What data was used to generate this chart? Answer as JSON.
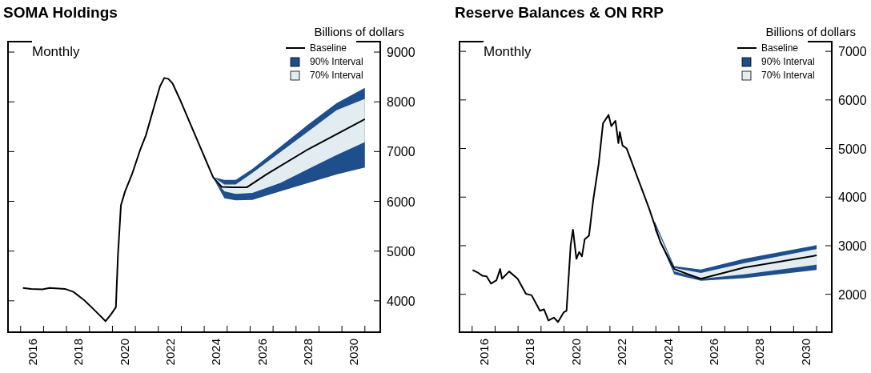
{
  "chart_data": [
    {
      "type": "line",
      "title": "SOMA Holdings",
      "ylabel": "Billions of dollars",
      "annotations": [
        "Monthly"
      ],
      "legend": "top right",
      "xlim": [
        2015.45,
        2031.67
      ],
      "ylim": [
        3370,
        9210
      ],
      "yticks": [
        4000,
        5000,
        6000,
        7000,
        8000,
        9000
      ],
      "xticks": [
        {
          "value": 2016,
          "label": null
        },
        {
          "value": 2016.5,
          "label": "2016"
        },
        {
          "value": 2017,
          "label": null
        },
        {
          "value": 2018,
          "label": null
        },
        {
          "value": 2018.5,
          "label": "2018"
        },
        {
          "value": 2019,
          "label": null
        },
        {
          "value": 2020,
          "label": null
        },
        {
          "value": 2020.5,
          "label": "2020"
        },
        {
          "value": 2021,
          "label": null
        },
        {
          "value": 2022,
          "label": null
        },
        {
          "value": 2022.5,
          "label": "2022"
        },
        {
          "value": 2023,
          "label": null
        },
        {
          "value": 2024,
          "label": null
        },
        {
          "value": 2024.5,
          "label": "2024"
        },
        {
          "value": 2025,
          "label": null
        },
        {
          "value": 2026,
          "label": null
        },
        {
          "value": 2026.5,
          "label": "2026"
        },
        {
          "value": 2027,
          "label": null
        },
        {
          "value": 2028,
          "label": null
        },
        {
          "value": 2028.5,
          "label": "2028"
        },
        {
          "value": 2029,
          "label": null
        },
        {
          "value": 2030,
          "label": null
        },
        {
          "value": 2030.5,
          "label": "2030"
        },
        {
          "value": 2031,
          "label": null
        }
      ],
      "series": [
        {
          "name": "90% Interval",
          "color": "#1f4e8c",
          "x": [
            2024.45,
            2024.88,
            2025.37,
            2026.1,
            2027.32,
            2028.54,
            2029.76,
            2031.0
          ],
          "values": [
            null,
            null,
            null,
            null,
            null,
            null,
            null,
            null
          ],
          "lower": [
            6420,
            6060,
            6020,
            6030,
            6200,
            6370,
            6540,
            6680
          ],
          "upper": [
            6480,
            6430,
            6430,
            6650,
            7100,
            7550,
            7970,
            8280
          ]
        },
        {
          "name": "70% Interval",
          "color": "#e3edf1",
          "x": [
            2024.45,
            2024.88,
            2025.37,
            2026.1,
            2027.32,
            2028.54,
            2029.76,
            2031.0
          ],
          "values": [
            null,
            null,
            null,
            null,
            null,
            null,
            null,
            null
          ],
          "lower": [
            6430,
            6200,
            6150,
            6170,
            6370,
            6650,
            6930,
            7190
          ],
          "upper": [
            6470,
            6340,
            6340,
            6570,
            6990,
            7410,
            7830,
            8060
          ]
        },
        {
          "name": "Baseline",
          "color": "#000000",
          "x": [
            2016.1,
            2016.46,
            2016.95,
            2017.26,
            2017.93,
            2018.3,
            2018.78,
            2019.27,
            2019.7,
            2019.94,
            2020.15,
            2020.24,
            2020.37,
            2020.55,
            2020.85,
            2021.22,
            2021.46,
            2021.77,
            2022.07,
            2022.26,
            2022.44,
            2022.62,
            2022.93,
            2023.66,
            2024.39,
            2024.76,
            2025.24,
            2025.85,
            2026.71,
            2028.54,
            2031.0
          ],
          "values": [
            4260,
            4240,
            4230,
            4260,
            4240,
            4180,
            4010,
            3790,
            3590,
            3730,
            3870,
            4910,
            5920,
            6200,
            6540,
            7050,
            7330,
            7830,
            8310,
            8480,
            8460,
            8370,
            8060,
            7270,
            6480,
            6290,
            6280,
            6280,
            6540,
            7050,
            7650
          ]
        }
      ]
    },
    {
      "type": "line",
      "title": "Reserve Balances & ON RRP",
      "ylabel": "Billions of dollars",
      "annotations": [
        "Monthly"
      ],
      "legend": "top right",
      "xlim": [
        2015.45,
        2031.66
      ],
      "ylim": [
        1220,
        7200
      ],
      "yticks": [
        2000,
        3000,
        4000,
        5000,
        6000,
        7000
      ],
      "xticks": [
        {
          "value": 2016,
          "label": null
        },
        {
          "value": 2016.5,
          "label": "2016"
        },
        {
          "value": 2017,
          "label": null
        },
        {
          "value": 2018,
          "label": null
        },
        {
          "value": 2018.5,
          "label": "2018"
        },
        {
          "value": 2019,
          "label": null
        },
        {
          "value": 2020,
          "label": null
        },
        {
          "value": 2020.5,
          "label": "2020"
        },
        {
          "value": 2021,
          "label": null
        },
        {
          "value": 2022,
          "label": null
        },
        {
          "value": 2022.5,
          "label": "2022"
        },
        {
          "value": 2023,
          "label": null
        },
        {
          "value": 2024,
          "label": null
        },
        {
          "value": 2024.5,
          "label": "2024"
        },
        {
          "value": 2025,
          "label": null
        },
        {
          "value": 2026,
          "label": null
        },
        {
          "value": 2026.5,
          "label": "2026"
        },
        {
          "value": 2027,
          "label": null
        },
        {
          "value": 2028,
          "label": null
        },
        {
          "value": 2028.5,
          "label": "2028"
        },
        {
          "value": 2029,
          "label": null
        },
        {
          "value": 2030,
          "label": null
        },
        {
          "value": 2030.5,
          "label": "2030"
        },
        {
          "value": 2031,
          "label": null
        }
      ],
      "series": [
        {
          "name": "90% Interval",
          "color": "#1f4e8c",
          "x": [
            2023.95,
            2024.8,
            2025.96,
            2027.85,
            2031.0
          ],
          "values": [
            null,
            null,
            null,
            null,
            null
          ],
          "lower": [
            3330,
            2410,
            2280,
            2330,
            2500
          ],
          "upper": [
            3500,
            2580,
            2510,
            2730,
            3010
          ]
        },
        {
          "name": "70% Interval",
          "color": "#e3edf1",
          "x": [
            2023.95,
            2024.8,
            2025.96,
            2027.85,
            2031.0
          ],
          "values": [
            null,
            null,
            null,
            null,
            null
          ],
          "lower": [
            3380,
            2470,
            2320,
            2410,
            2610
          ],
          "upper": [
            3450,
            2540,
            2440,
            2640,
            2930
          ]
        },
        {
          "name": "Baseline",
          "color": "#000000",
          "x": [
            2016.02,
            2016.27,
            2016.45,
            2016.63,
            2016.82,
            2017.06,
            2017.22,
            2017.3,
            2017.61,
            2017.98,
            2018.34,
            2018.59,
            2018.95,
            2019.13,
            2019.32,
            2019.56,
            2019.74,
            2019.99,
            2020.11,
            2020.29,
            2020.39,
            2020.54,
            2020.66,
            2020.78,
            2020.9,
            2021.09,
            2021.27,
            2021.51,
            2021.7,
            2021.94,
            2022.06,
            2022.24,
            2022.37,
            2022.43,
            2022.55,
            2022.73,
            2022.98,
            2023.71,
            2024.2,
            2024.8,
            2025.41,
            2025.96,
            2027.85,
            2031.0
          ],
          "values": [
            2500,
            2440,
            2380,
            2370,
            2220,
            2290,
            2520,
            2320,
            2470,
            2320,
            2010,
            1980,
            1660,
            1690,
            1460,
            1520,
            1430,
            1630,
            1660,
            3010,
            3330,
            2730,
            2870,
            2780,
            3130,
            3210,
            3930,
            4680,
            5520,
            5690,
            5460,
            5570,
            5110,
            5340,
            5060,
            5000,
            4680,
            3760,
            3070,
            2520,
            2410,
            2320,
            2550,
            2800
          ]
        }
      ]
    }
  ]
}
